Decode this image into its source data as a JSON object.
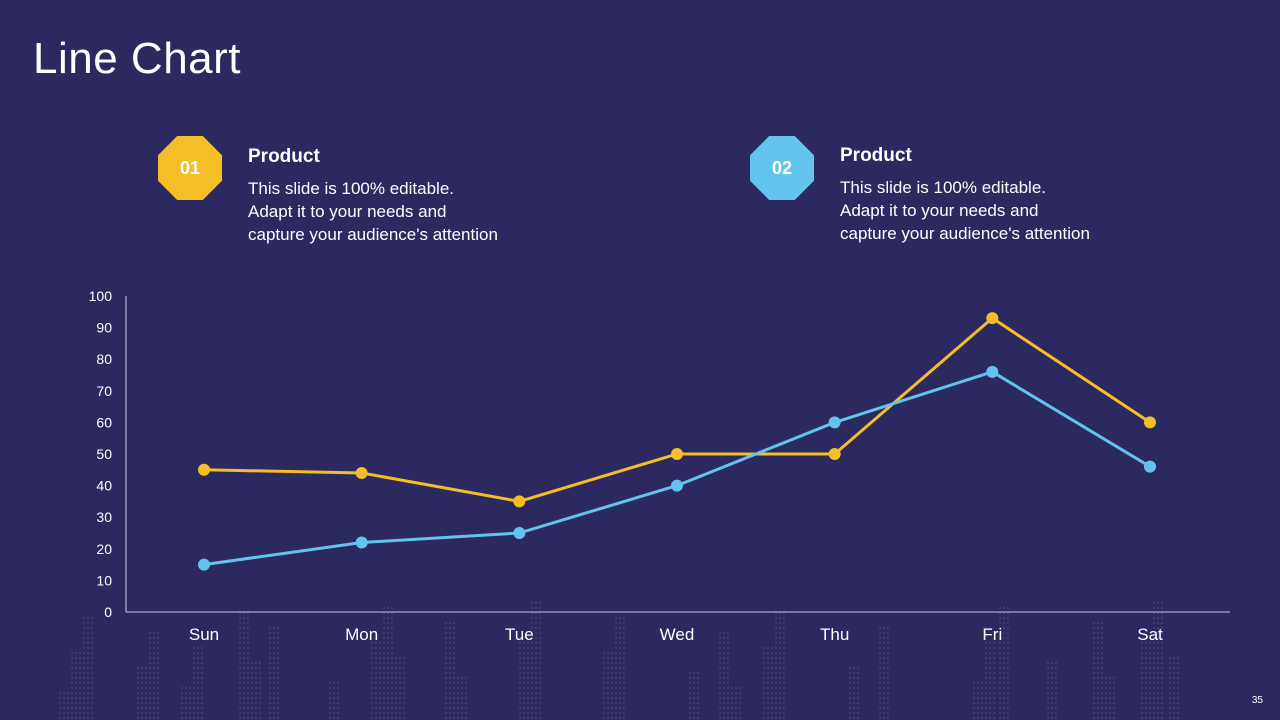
{
  "slide": {
    "title": "Line Chart",
    "page_number": "35"
  },
  "cards": [
    {
      "badge": "01",
      "color": "#f5bd26",
      "heading": "Product",
      "lines": [
        "This slide is 100% editable.",
        "Adapt it to your needs and",
        "capture your audience's attention"
      ]
    },
    {
      "badge": "02",
      "color": "#62c3ee",
      "heading": "Product",
      "lines": [
        "This slide is 100% editable.",
        "Adapt it to your needs and",
        "capture your audience's attention"
      ]
    }
  ],
  "colors": {
    "background": "#2c2960",
    "axis": "#c9c8e0"
  },
  "chart_data": {
    "type": "line",
    "title": "",
    "xlabel": "",
    "ylabel": "",
    "categories": [
      "Sun",
      "Mon",
      "Tue",
      "Wed",
      "Thu",
      "Fri",
      "Sat"
    ],
    "ylim": [
      0,
      100
    ],
    "yticks": [
      0,
      10,
      20,
      30,
      40,
      50,
      60,
      70,
      80,
      90,
      100
    ],
    "grid": false,
    "series": [
      {
        "name": "Product 01",
        "color": "#f5bd26",
        "values": [
          45,
          44,
          35,
          50,
          50,
          93,
          60
        ]
      },
      {
        "name": "Product 02",
        "color": "#62c3ee",
        "values": [
          15,
          22,
          25,
          40,
          60,
          76,
          46
        ]
      }
    ]
  }
}
